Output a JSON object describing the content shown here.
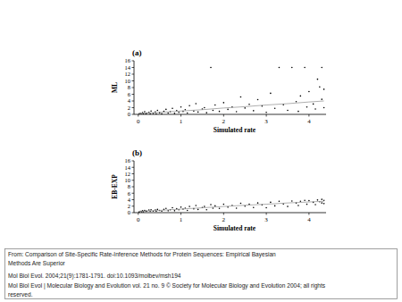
{
  "chart_data": [
    {
      "type": "scatter",
      "title": "(a)",
      "x_label": "Simulated rate",
      "y_label": "ML",
      "xlim": [
        -0.1,
        4.4
      ],
      "ylim": [
        0,
        16
      ],
      "xticks": [
        0,
        1,
        2,
        3,
        4
      ],
      "yticks": [
        0,
        2,
        4,
        6,
        8,
        10,
        12,
        14,
        16
      ],
      "series": [
        {
          "type": "scatter",
          "marker": "dot",
          "color": "#000000",
          "x": [
            0.02,
            0.05,
            0.08,
            0.1,
            0.12,
            0.15,
            0.18,
            0.2,
            0.25,
            0.28,
            0.3,
            0.35,
            0.4,
            0.42,
            0.45,
            0.5,
            0.55,
            0.6,
            0.65,
            0.7,
            0.75,
            0.8,
            0.85,
            0.9,
            0.95,
            1.0,
            1.05,
            1.1,
            1.15,
            1.2,
            1.3,
            1.35,
            1.4,
            1.5,
            1.55,
            1.6,
            1.7,
            1.75,
            1.8,
            1.9,
            2.0,
            2.1,
            2.2,
            2.3,
            2.4,
            2.5,
            2.6,
            2.7,
            2.8,
            2.9,
            3.0,
            3.1,
            3.2,
            3.3,
            3.4,
            3.5,
            3.6,
            3.7,
            3.75,
            3.8,
            3.9,
            3.95,
            4.0,
            4.1,
            4.15,
            4.2,
            4.25,
            4.3,
            4.3,
            4.35,
            4.35
          ],
          "values": [
            0.1,
            0.3,
            0.0,
            0.5,
            0.2,
            0.8,
            0.1,
            0.4,
            0.6,
            0.2,
            1.0,
            0.3,
            0.7,
            0.1,
            1.2,
            0.5,
            0.2,
            0.9,
            1.5,
            0.4,
            0.8,
            1.8,
            0.3,
            1.1,
            0.6,
            2.2,
            0.9,
            1.4,
            0.4,
            2.6,
            1.0,
            3.2,
            0.7,
            1.6,
            2.0,
            0.5,
            14,
            1.2,
            2.8,
            0.9,
            3.5,
            1.5,
            2.2,
            0.8,
            5.2,
            1.9,
            3.0,
            1.1,
            4.4,
            2.5,
            0.6,
            6.3,
            1.8,
            14,
            2.9,
            1.2,
            14,
            3.8,
            0.9,
            5.5,
            14,
            2.2,
            6.8,
            3.1,
            1.6,
            10.5,
            8.2,
            14,
            4.5,
            2.0,
            7.5
          ]
        },
        {
          "type": "line",
          "line_style": "solid",
          "color": "#9a9a9a",
          "x": [
            0,
            0.5,
            1,
            1.5,
            2,
            2.5,
            3,
            3.5,
            4,
            4.35
          ],
          "values": [
            0.3,
            0.6,
            1.0,
            1.4,
            1.9,
            2.3,
            2.8,
            3.2,
            3.7,
            4.0
          ]
        }
      ]
    },
    {
      "type": "scatter",
      "title": "(b)",
      "x_label": "Simulated rate",
      "y_label": "EB-EXP",
      "xlim": [
        -0.1,
        4.4
      ],
      "ylim": [
        0,
        16
      ],
      "xticks": [
        0,
        1,
        2,
        3,
        4
      ],
      "yticks": [
        0,
        2,
        4,
        6,
        8,
        10,
        12,
        14,
        16
      ],
      "series": [
        {
          "type": "scatter",
          "marker": "dot",
          "color": "#000000",
          "x": [
            0.02,
            0.05,
            0.08,
            0.1,
            0.12,
            0.15,
            0.18,
            0.2,
            0.25,
            0.28,
            0.3,
            0.35,
            0.4,
            0.42,
            0.45,
            0.5,
            0.55,
            0.6,
            0.65,
            0.7,
            0.75,
            0.8,
            0.85,
            0.9,
            0.95,
            1.0,
            1.05,
            1.1,
            1.15,
            1.2,
            1.3,
            1.35,
            1.4,
            1.5,
            1.55,
            1.6,
            1.7,
            1.75,
            1.8,
            1.9,
            2.0,
            2.1,
            2.2,
            2.3,
            2.4,
            2.5,
            2.6,
            2.7,
            2.8,
            2.9,
            3.0,
            3.1,
            3.2,
            3.3,
            3.4,
            3.5,
            3.6,
            3.7,
            3.75,
            3.8,
            3.9,
            3.95,
            4.0,
            4.1,
            4.15,
            4.2,
            4.25,
            4.3,
            4.3,
            4.35,
            4.35
          ],
          "values": [
            0.2,
            0.4,
            0.3,
            0.6,
            0.3,
            0.7,
            0.4,
            0.5,
            0.8,
            0.4,
            0.9,
            0.5,
            0.8,
            0.4,
            1.0,
            0.7,
            0.5,
            1.0,
            1.3,
            0.6,
            0.9,
            1.5,
            0.6,
            1.2,
            0.9,
            1.7,
            1.1,
            1.4,
            0.7,
            1.9,
            1.2,
            2.2,
            1.0,
            1.6,
            1.9,
            0.9,
            2.5,
            1.4,
            2.1,
            1.3,
            2.6,
            1.7,
            2.2,
            1.4,
            2.9,
            2.0,
            2.6,
            1.6,
            3.0,
            2.4,
            1.5,
            3.2,
            2.1,
            3.5,
            2.7,
            1.9,
            3.6,
            3.0,
            2.2,
            3.5,
            3.8,
            2.6,
            3.7,
            3.2,
            2.5,
            3.9,
            3.4,
            4.1,
            3.0,
            2.8,
            3.8
          ]
        },
        {
          "type": "line",
          "line_style": "solid",
          "color": "#9a9a9a",
          "x": [
            0,
            0.5,
            1,
            1.5,
            2,
            2.5,
            3,
            3.5,
            4,
            4.35
          ],
          "values": [
            0.4,
            0.7,
            1.1,
            1.5,
            1.9,
            2.3,
            2.6,
            3.0,
            3.3,
            3.5
          ]
        }
      ]
    }
  ],
  "caption": [
    "From: Comparison of Site-Specific Rate-Inference Methods for Protein Sequences: Empirical Bayesian",
    "Methods Are Superior",
    "Mol Biol Evol. 2004;21(9):1781-1791. doi:10.1093/molbev/msh194",
    "Mol Biol Evol | Molecular Biology and Evolution vol. 21 no. 9 © Society for Molecular Biology and Evolution 2004; all rights",
    "reserved."
  ]
}
